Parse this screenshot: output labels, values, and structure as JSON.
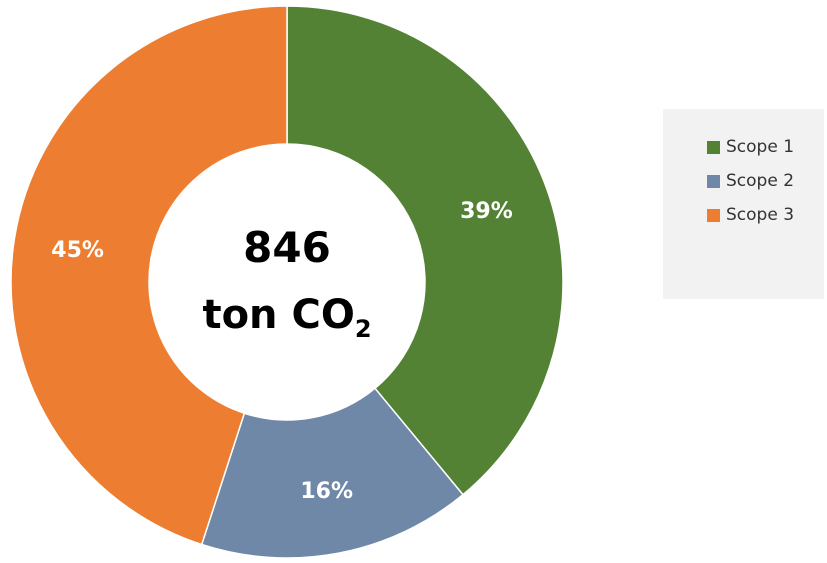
{
  "chart_data": {
    "type": "pie",
    "categories": [
      "Scope 1",
      "Scope 2",
      "Scope 3"
    ],
    "values": [
      39,
      16,
      45
    ],
    "labels": [
      "39%",
      "16%",
      "45%"
    ],
    "colors": [
      "#548235",
      "#7088a8",
      "#ed7d31"
    ],
    "center": {
      "value": "846",
      "unit_prefix": "ton CO",
      "unit_subscript": "2"
    },
    "legend": {
      "placement": "right",
      "items": [
        "Scope 1",
        "Scope 2",
        "Scope 3"
      ]
    }
  }
}
